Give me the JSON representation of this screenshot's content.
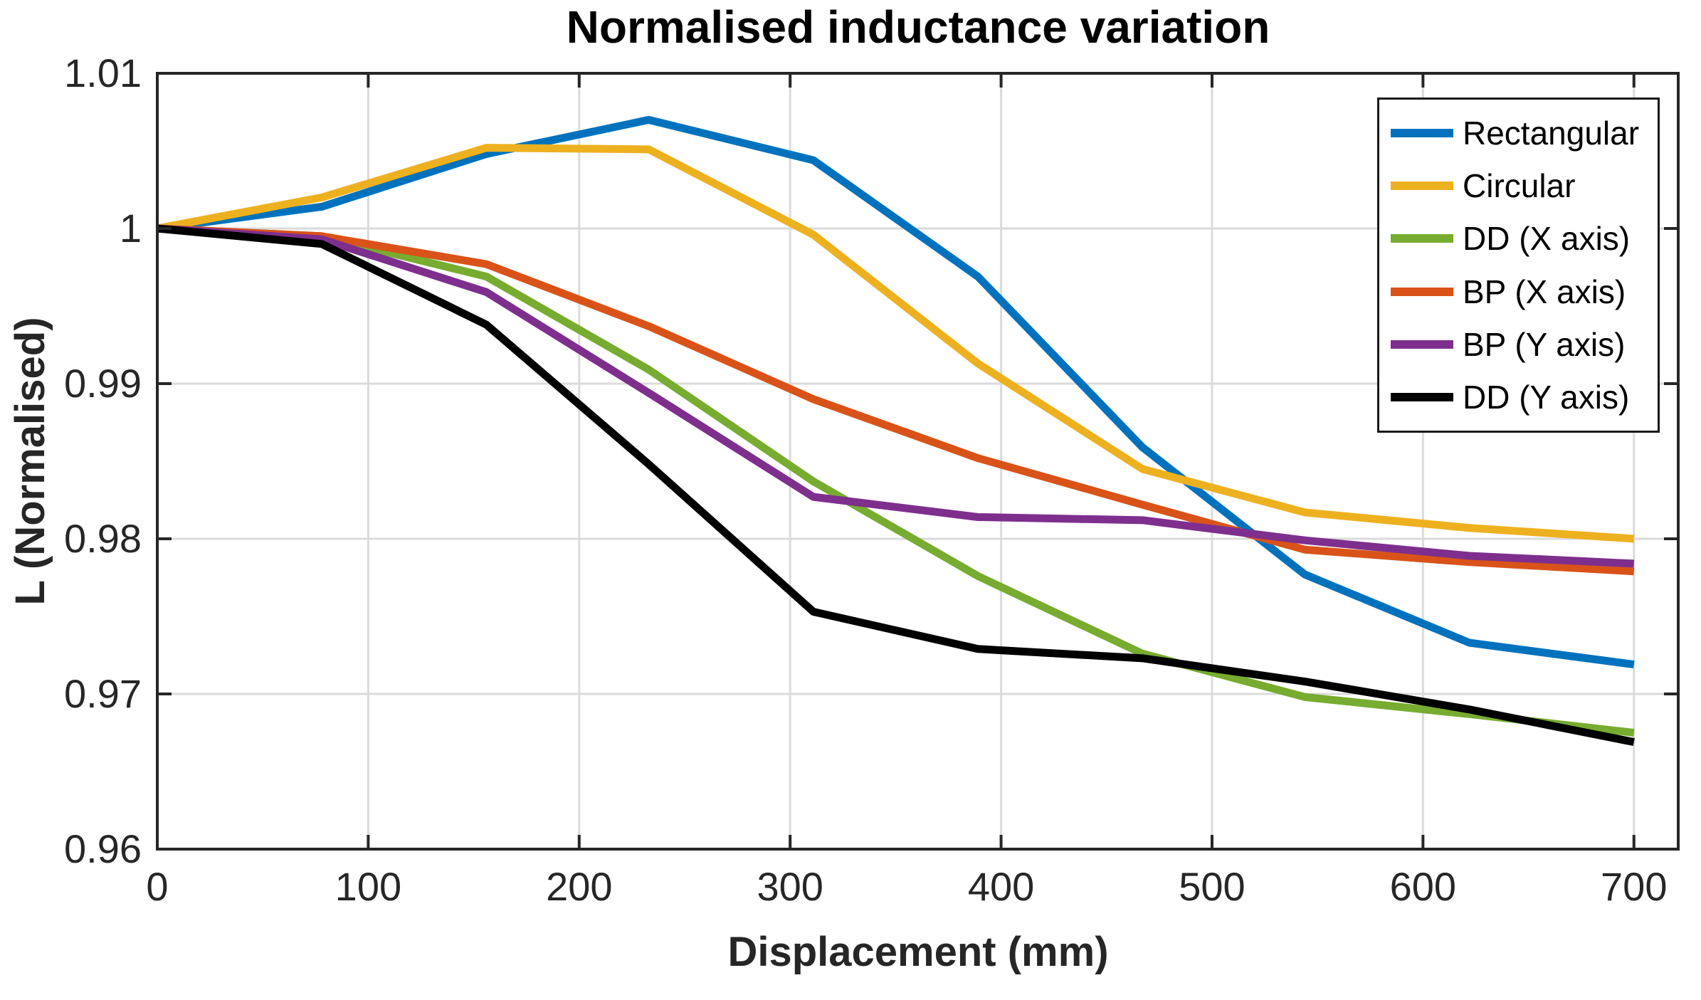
{
  "figure": {
    "title": "Normalised inductance variation",
    "xlabel": "Displacement (mm)",
    "ylabel": "L (Normalised)",
    "background": "#ffffff",
    "frame_color": "#262626",
    "grid_color": "#dbdbdb",
    "tick_label_color": "#262626",
    "title_color": "#000000"
  },
  "chart_data": {
    "type": "line",
    "title": "Normalised inductance variation",
    "xlabel": "Displacement (mm)",
    "ylabel": "L (Normalised)",
    "xlim": [
      0,
      721
    ],
    "ylim": [
      0.96,
      1.01
    ],
    "grid": true,
    "legend_position": "northeast",
    "x_ticks": [
      0,
      100,
      200,
      300,
      400,
      500,
      600,
      700
    ],
    "x_tick_labels": [
      "0",
      "100",
      "200",
      "300",
      "400",
      "500",
      "600",
      "700"
    ],
    "y_ticks": [
      0.96,
      0.97,
      0.98,
      0.99,
      1.0,
      1.01
    ],
    "y_tick_labels": [
      "0.96",
      "0.97",
      "0.98",
      "0.99",
      "1",
      "1.01"
    ],
    "x": [
      0,
      78,
      156,
      233,
      311,
      389,
      467,
      544,
      622,
      700
    ],
    "series": [
      {
        "name": "Rectangular",
        "color": "#0072BD",
        "values": [
          1.0,
          1.0014,
          1.0048,
          1.007,
          1.0044,
          0.9969,
          0.9859,
          0.9777,
          0.9733,
          0.9719
        ]
      },
      {
        "name": "Circular",
        "color": "#EDB120",
        "values": [
          1.0,
          1.002,
          1.0052,
          1.0051,
          0.9996,
          0.9913,
          0.9845,
          0.9817,
          0.9807,
          0.98
        ]
      },
      {
        "name": "DD (X axis)",
        "color": "#77AC30",
        "values": [
          1.0,
          0.9995,
          0.9969,
          0.9909,
          0.9837,
          0.9776,
          0.9726,
          0.9698,
          0.9687,
          0.9675
        ]
      },
      {
        "name": "BP (X axis)",
        "color": "#D95319",
        "values": [
          1.0,
          0.9995,
          0.9977,
          0.9937,
          0.989,
          0.9852,
          0.9822,
          0.9793,
          0.9785,
          0.9779
        ]
      },
      {
        "name": "BP (Y axis)",
        "color": "#7E2F8E",
        "values": [
          1.0,
          0.9993,
          0.9959,
          0.9894,
          0.9827,
          0.9814,
          0.9812,
          0.9799,
          0.9789,
          0.9784
        ]
      },
      {
        "name": "DD (Y axis)",
        "color": "#000000",
        "values": [
          1.0,
          0.999,
          0.9938,
          0.9848,
          0.9753,
          0.9729,
          0.9723,
          0.9708,
          0.969,
          0.9669
        ]
      }
    ]
  }
}
